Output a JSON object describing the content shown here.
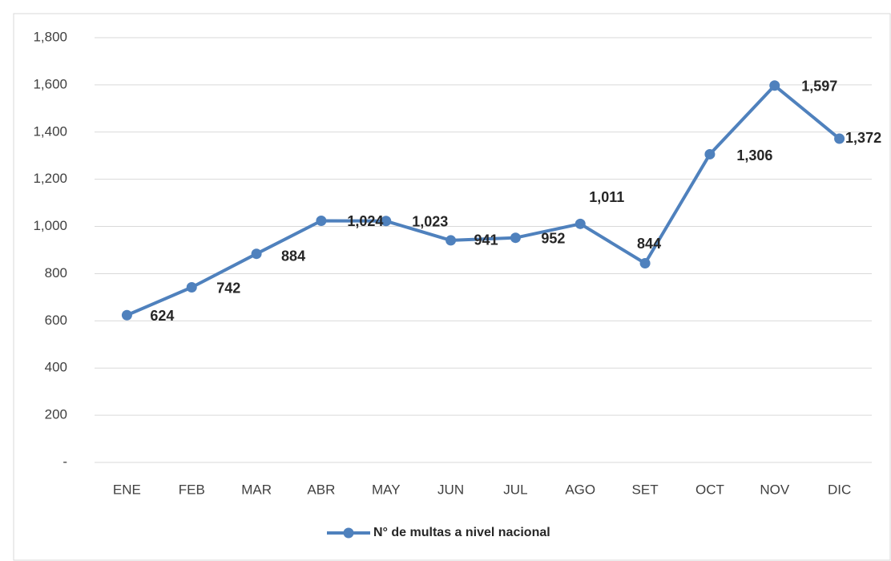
{
  "chart_data": {
    "type": "line",
    "categories": [
      "ENE",
      "FEB",
      "MAR",
      "ABR",
      "MAY",
      "JUN",
      "JUL",
      "AGO",
      "SET",
      "OCT",
      "NOV",
      "DIC"
    ],
    "series": [
      {
        "name": "N° de multas a nivel nacional",
        "color": "#4f81bd",
        "values": [
          624,
          742,
          884,
          1024,
          1023,
          941,
          952,
          1011,
          844,
          1306,
          1597,
          1372
        ],
        "value_labels": [
          "624",
          "742",
          "884",
          "1,024",
          "1,023",
          "941",
          "952",
          "1,011",
          "844",
          "1,306",
          "1,597",
          "1,372"
        ]
      }
    ],
    "ylim": [
      0,
      1800
    ],
    "yticks": [
      {
        "value": 0,
        "label": "-"
      },
      200,
      400,
      600,
      800,
      {
        "value": 1000,
        "label": "1,000"
      },
      {
        "value": 1200,
        "label": "1,200"
      },
      {
        "value": 1400,
        "label": "1,400"
      },
      {
        "value": 1600,
        "label": "1,600"
      },
      {
        "value": 1800,
        "label": "1,800"
      }
    ],
    "grid": true,
    "legend": "bottom"
  }
}
